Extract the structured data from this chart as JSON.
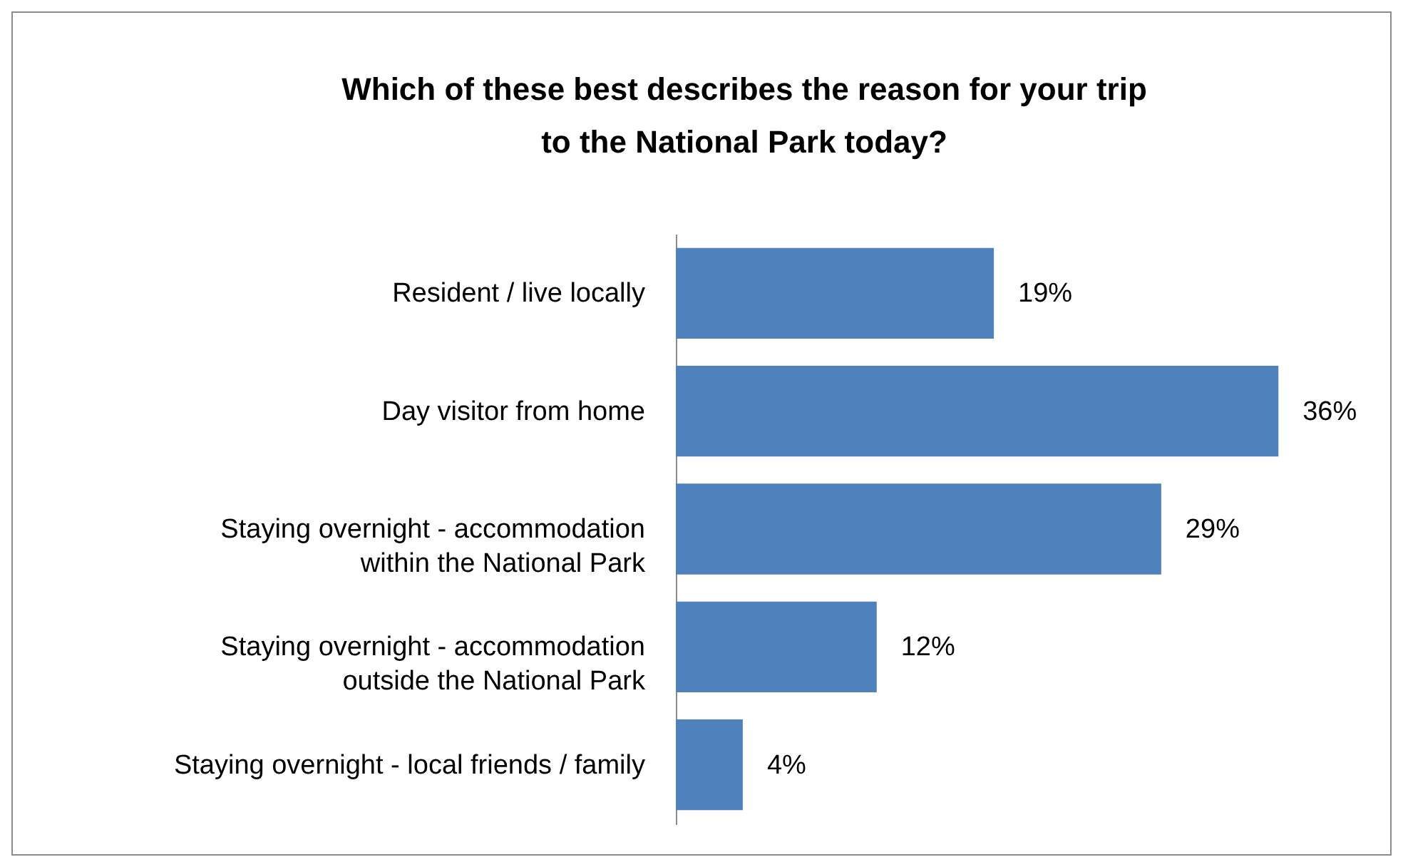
{
  "chart_data": {
    "type": "bar",
    "orientation": "horizontal",
    "title": "Which of these best describes the reason for your trip to the National Park today?",
    "categories": [
      "Resident / live locally",
      "Day visitor from home",
      "Staying overnight - accommodation within the National Park",
      "Staying overnight - accommodation outside the National Park",
      "Staying overnight - local friends / family"
    ],
    "values": [
      19,
      36,
      29,
      12,
      4
    ],
    "value_labels": [
      "19%",
      "36%",
      "29%",
      "12%",
      "4%"
    ],
    "color": "#4f81bd"
  }
}
